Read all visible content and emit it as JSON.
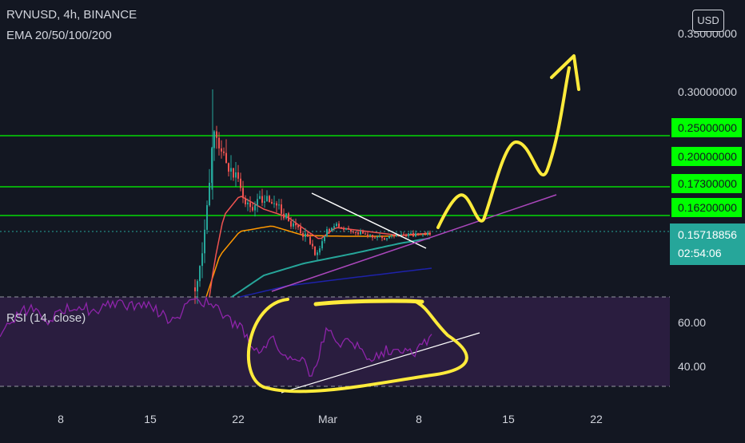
{
  "header": {
    "symbol_line": "RVNUSD, 4h, BINANCE",
    "indicator_line": "EMA 20/50/100/200",
    "currency_button": "USD"
  },
  "rsi_panel": {
    "label": "RSI (14, close)"
  },
  "colors": {
    "background": "#131722",
    "up_candle": "#26a69a",
    "down_candle": "#ef5350",
    "level_line": "#00ff00",
    "ema20": "#ef5350",
    "ema50": "#ff9800",
    "ema100": "#26a69a",
    "ema200": "#1e22aa",
    "rsi_line": "#8e24aa",
    "trend_purple": "#ab47bc",
    "drawing_yellow": "#ffeb3b",
    "rsi_band": "#2a1d3f"
  },
  "chart_data": [
    {
      "type": "line",
      "title": "RVNUSD, 4h, BINANCE",
      "xlabel": "",
      "ylabel": "",
      "x_ticks": [
        "8",
        "15",
        "22",
        "Mar",
        "8",
        "15",
        "22"
      ],
      "y_ticks": [
        "0.30000000",
        "0.25000000",
        "0.20000000",
        "0.17300000",
        "0.16200000"
      ],
      "y_tick_top_partial": "0.35000000",
      "horizontal_levels": [
        0.25,
        0.173,
        0.162
      ],
      "price_labels": [
        {
          "text": "0.25000000",
          "style": "level"
        },
        {
          "text": "0.20000000",
          "style": "level"
        },
        {
          "text": "0.17300000",
          "style": "level"
        },
        {
          "text": "0.16200000",
          "style": "level"
        },
        {
          "text": "0.15718856",
          "style": "current"
        },
        {
          "text": "02:54:06",
          "style": "current"
        }
      ],
      "current_price": 0.15718856,
      "countdown": "02:54:06",
      "series": [
        {
          "name": "EMA 20",
          "color": "#ef5350"
        },
        {
          "name": "EMA 50",
          "color": "#ff9800"
        },
        {
          "name": "EMA 100",
          "color": "#26a69a"
        },
        {
          "name": "EMA 200",
          "color": "#1e22aa"
        }
      ]
    },
    {
      "type": "line",
      "title": "RSI (14, close)",
      "y_ticks": [
        "60.00",
        "40.00"
      ],
      "bands": [
        70,
        30
      ],
      "series": [
        {
          "name": "RSI",
          "color": "#8e24aa"
        }
      ]
    }
  ]
}
